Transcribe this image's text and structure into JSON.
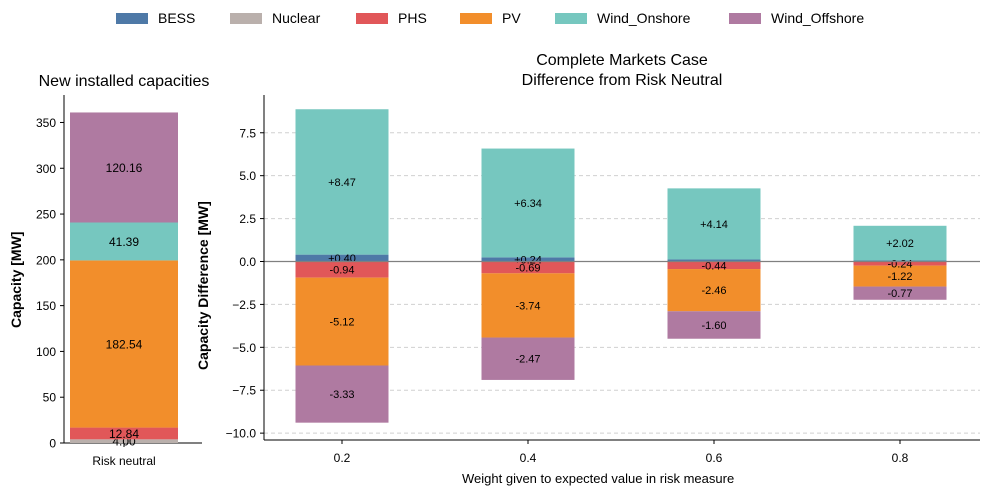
{
  "legend": [
    {
      "name": "BESS",
      "color": "#4e79a7"
    },
    {
      "name": "Nuclear",
      "color": "#bab0ac"
    },
    {
      "name": "PHS",
      "color": "#e15759"
    },
    {
      "name": "PV",
      "color": "#f28e2b"
    },
    {
      "name": "Wind_Onshore",
      "color": "#76c7bf"
    },
    {
      "name": "Wind_Offshore",
      "color": "#af7aa1"
    }
  ],
  "chart_data": [
    {
      "type": "bar",
      "stacked": true,
      "title": "New installed capacities",
      "xlabel": "",
      "ylabel": "Capacity [MW]",
      "categories": [
        "Risk neutral"
      ],
      "ylim": [
        0,
        380
      ],
      "yticks": [
        0,
        50,
        100,
        150,
        200,
        250,
        300,
        350
      ],
      "grid": false,
      "series": [
        {
          "name": "Nuclear",
          "values": [
            4.0
          ],
          "labels": [
            "4.00"
          ]
        },
        {
          "name": "PHS",
          "values": [
            12.84
          ],
          "labels": [
            "12.84"
          ]
        },
        {
          "name": "PV",
          "values": [
            182.54
          ],
          "labels": [
            "182.54"
          ]
        },
        {
          "name": "Wind_Onshore",
          "values": [
            41.39
          ],
          "labels": [
            "41.39"
          ]
        },
        {
          "name": "Wind_Offshore",
          "values": [
            120.16
          ],
          "labels": [
            "120.16"
          ]
        }
      ]
    },
    {
      "type": "bar",
      "stacked": true,
      "title": [
        "Complete Markets Case",
        "Difference from Risk Neutral"
      ],
      "xlabel": "Weight given to expected value in risk measure",
      "ylabel": "Capacity Difference [MW]",
      "categories": [
        "0.2",
        "0.4",
        "0.6",
        "0.8"
      ],
      "ylim": [
        -10.4,
        9.7
      ],
      "yticks": [
        -10.0,
        -7.5,
        -5.0,
        -2.5,
        0.0,
        2.5,
        5.0,
        7.5
      ],
      "ytick_labels": [
        "−10.0",
        "−7.5",
        "−5.0",
        "−2.5",
        "0.0",
        "2.5",
        "5.0",
        "7.5"
      ],
      "grid": true,
      "series": [
        {
          "name": "BESS",
          "values": [
            0.4,
            0.24,
            0.12,
            0.06
          ],
          "labels": [
            "+0.40",
            "+0.24",
            "",
            ""
          ]
        },
        {
          "name": "Wind_Onshore",
          "values": [
            8.47,
            6.34,
            4.14,
            2.02
          ],
          "labels": [
            "+8.47",
            "+6.34",
            "+4.14",
            "+2.02"
          ]
        },
        {
          "name": "PHS",
          "values": [
            -0.94,
            -0.69,
            -0.44,
            -0.24
          ],
          "labels": [
            "-0.94",
            "-0.69",
            "-0.44",
            "-0.24"
          ]
        },
        {
          "name": "PV",
          "values": [
            -5.12,
            -3.74,
            -2.46,
            -1.22
          ],
          "labels": [
            "-5.12",
            "-3.74",
            "-2.46",
            "-1.22"
          ]
        },
        {
          "name": "Wind_Offshore",
          "values": [
            -3.33,
            -2.47,
            -1.6,
            -0.77
          ],
          "labels": [
            "-3.33",
            "-2.47",
            "-1.60",
            "-0.77"
          ]
        }
      ]
    }
  ]
}
